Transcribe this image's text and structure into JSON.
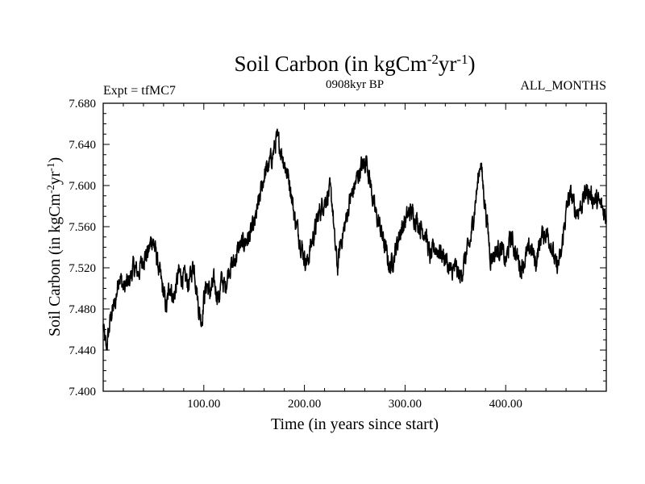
{
  "header": {
    "title_main": "Soil Carbon (in kgCm",
    "title_sup1": "-2",
    "title_mid": "yr",
    "title_sup2": "-1",
    "title_end": ")",
    "left_label": "Expt = tfMC7",
    "center_label": "0908kyr BP",
    "right_label": "ALL_MONTHS"
  },
  "axes": {
    "xlabel": "Time (in years since start)",
    "ylabel_main": "Soil Carbon (in kgCm",
    "ylabel_sup1": "-2",
    "ylabel_mid": "yr",
    "ylabel_sup2": "-1",
    "ylabel_end": ")"
  },
  "chart_data": {
    "type": "line",
    "title": "Soil Carbon (in kgCm-2yr-1)",
    "xlabel": "Time (in years since start)",
    "ylabel": "Soil Carbon (in kgCm-2yr-1)",
    "xlim": [
      0,
      500
    ],
    "ylim": [
      7.4,
      7.68
    ],
    "xticks": [
      100,
      200,
      300,
      400
    ],
    "xtick_labels": [
      "100.00",
      "200.00",
      "300.00",
      "400.00"
    ],
    "yticks": [
      7.4,
      7.44,
      7.48,
      7.52,
      7.56,
      7.6,
      7.64,
      7.68
    ],
    "ytick_labels": [
      "7.400",
      "7.440",
      "7.480",
      "7.520",
      "7.560",
      "7.600",
      "7.640",
      "7.680"
    ],
    "series": [
      {
        "name": "Soil Carbon",
        "color": "#000000",
        "x": [
          0,
          3,
          8,
          12,
          16,
          20,
          25,
          30,
          35,
          40,
          45,
          48,
          50,
          55,
          60,
          63,
          66,
          70,
          75,
          80,
          85,
          90,
          95,
          98,
          100,
          103,
          106,
          110,
          115,
          118,
          121,
          125,
          130,
          135,
          140,
          145,
          150,
          155,
          160,
          165,
          170,
          172,
          175,
          178,
          182,
          186,
          190,
          195,
          200,
          203,
          206,
          210,
          215,
          220,
          225,
          228,
          230,
          233,
          236,
          240,
          245,
          250,
          255,
          258,
          262,
          265,
          270,
          275,
          280,
          285,
          290,
          295,
          300,
          305,
          310,
          315,
          320,
          325,
          330,
          335,
          340,
          345,
          350,
          355,
          360,
          365,
          368,
          372,
          375,
          378,
          382,
          385,
          390,
          395,
          400,
          405,
          410,
          415,
          420,
          425,
          430,
          435,
          440,
          445,
          450,
          455,
          458,
          462,
          465,
          470,
          475,
          480,
          485,
          490,
          495,
          500
        ],
        "values": [
          7.462,
          7.44,
          7.475,
          7.485,
          7.515,
          7.5,
          7.505,
          7.52,
          7.515,
          7.53,
          7.535,
          7.548,
          7.545,
          7.52,
          7.495,
          7.48,
          7.505,
          7.49,
          7.515,
          7.51,
          7.505,
          7.525,
          7.48,
          7.468,
          7.49,
          7.505,
          7.495,
          7.505,
          7.49,
          7.51,
          7.5,
          7.52,
          7.525,
          7.54,
          7.545,
          7.55,
          7.56,
          7.585,
          7.61,
          7.62,
          7.635,
          7.645,
          7.64,
          7.63,
          7.615,
          7.6,
          7.57,
          7.55,
          7.53,
          7.525,
          7.54,
          7.555,
          7.575,
          7.585,
          7.595,
          7.58,
          7.545,
          7.52,
          7.545,
          7.56,
          7.585,
          7.6,
          7.615,
          7.62,
          7.625,
          7.605,
          7.575,
          7.56,
          7.54,
          7.52,
          7.535,
          7.555,
          7.565,
          7.575,
          7.57,
          7.56,
          7.555,
          7.53,
          7.54,
          7.535,
          7.53,
          7.515,
          7.52,
          7.51,
          7.53,
          7.545,
          7.57,
          7.6,
          7.625,
          7.595,
          7.56,
          7.53,
          7.535,
          7.54,
          7.525,
          7.55,
          7.535,
          7.52,
          7.53,
          7.54,
          7.525,
          7.55,
          7.555,
          7.545,
          7.52,
          7.53,
          7.56,
          7.585,
          7.59,
          7.575,
          7.58,
          7.595,
          7.59,
          7.585,
          7.58,
          7.57
        ]
      }
    ]
  }
}
